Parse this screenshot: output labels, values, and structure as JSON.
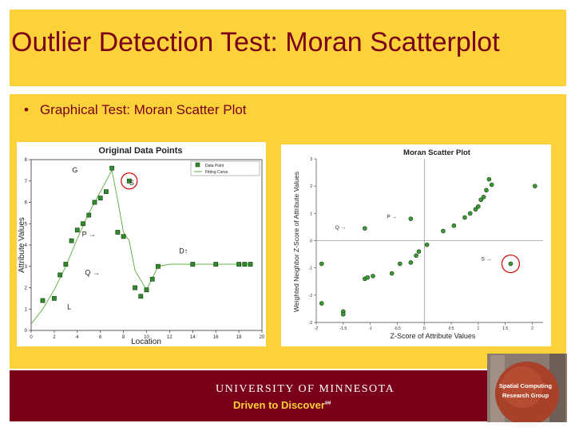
{
  "slide": {
    "title": "Outlier Detection Test: Moran Scatterplot",
    "bullet": "Graphical Test: Moran Scatter Plot",
    "bullet_marker": "•"
  },
  "footer": {
    "university": "UNIVERSITY OF MINNESOTA",
    "tagline": "Driven to Discover",
    "tagline_mark": "SM",
    "group_line1": "Spatial Computing",
    "group_line2": "Research Group",
    "colors": {
      "maroon": "#7a0019",
      "gold": "#fcd23a"
    }
  },
  "chart_data": [
    {
      "type": "line",
      "title": "Original Data Points",
      "xlabel": "Location",
      "ylabel": "Attribute Values",
      "xlim": [
        0,
        20
      ],
      "ylim": [
        0,
        8
      ],
      "xticks": [
        0,
        2,
        4,
        6,
        8,
        10,
        12,
        14,
        16,
        18,
        20
      ],
      "yticks": [
        0,
        1,
        2,
        3,
        4,
        5,
        6,
        7,
        8
      ],
      "legend": {
        "placement": "top-right",
        "entries": [
          "Data Point",
          "Fitting Curve"
        ]
      },
      "series": [
        {
          "name": "Data Point",
          "x": [
            1,
            2,
            2.5,
            3,
            3.5,
            4,
            4.5,
            5,
            5.5,
            6,
            6.5,
            7,
            7.5,
            8,
            8.5,
            9,
            9.5,
            10,
            10.5,
            11,
            14,
            16,
            18,
            18.5,
            19
          ],
          "y": [
            1.4,
            1.5,
            2.6,
            3.1,
            4.2,
            4.7,
            5.0,
            5.4,
            6.0,
            6.2,
            6.5,
            7.6,
            4.6,
            4.4,
            7.0,
            2.0,
            1.6,
            1.9,
            2.4,
            3.0,
            3.1,
            3.1,
            3.1,
            3.1,
            3.1
          ]
        },
        {
          "name": "Fitting Curve",
          "x": [
            0,
            1,
            2,
            3,
            4,
            5,
            6,
            7,
            7.5,
            8,
            8.5,
            9,
            10,
            11,
            12,
            14,
            16,
            18,
            19
          ],
          "y": [
            0.3,
            1.0,
            1.9,
            3.0,
            4.3,
            5.5,
            6.5,
            7.5,
            6.1,
            4.6,
            4.2,
            2.8,
            1.9,
            3.0,
            3.1,
            3.1,
            3.1,
            3.1,
            3.1
          ]
        }
      ],
      "annotations": [
        {
          "text": "G",
          "x": 3.8,
          "y": 7.4
        },
        {
          "text": "S",
          "x": 8.7,
          "y": 6.8
        },
        {
          "text": "P →",
          "x": 5.0,
          "y": 4.4
        },
        {
          "text": "Q →",
          "x": 5.3,
          "y": 2.6
        },
        {
          "text": "D↑",
          "x": 13.2,
          "y": 3.6
        },
        {
          "text": "L",
          "x": 3.3,
          "y": 1.0
        }
      ]
    },
    {
      "type": "scatter",
      "title": "Moran Scatter Plot",
      "xlabel": "Z-Score of Attribute Values",
      "ylabel": "Weighted Neighbor Z-Score of Attribute Values",
      "xlim": [
        -2,
        2.2
      ],
      "ylim": [
        -3,
        3
      ],
      "xticks": [
        -2,
        -1.5,
        -1,
        -0.5,
        0,
        0.5,
        1,
        1.5,
        2
      ],
      "xtick_labels": [
        "-2",
        "-1.5",
        "-1",
        "-0.5",
        "0",
        "0.5",
        "1",
        "1.5",
        "2"
      ],
      "yticks": [
        -3,
        -2,
        -1,
        0,
        1,
        2,
        3
      ],
      "points": {
        "x": [
          -1.9,
          -1.9,
          -1.5,
          -1.5,
          -1.1,
          -1.05,
          -0.95,
          -0.6,
          -0.45,
          -0.25,
          -0.15,
          -0.1,
          0.05,
          0.35,
          0.55,
          0.75,
          0.85,
          0.95,
          1.0,
          1.05,
          1.1,
          1.15,
          1.2,
          1.25,
          2.05,
          1.6,
          -1.1,
          -0.25
        ],
        "y": [
          -0.85,
          -2.3,
          -2.6,
          -2.7,
          -1.4,
          -1.35,
          -1.3,
          -1.2,
          -0.85,
          -0.8,
          -0.55,
          -0.4,
          -0.15,
          0.35,
          0.55,
          0.85,
          1.0,
          1.15,
          1.25,
          1.5,
          1.6,
          1.85,
          2.25,
          2.05,
          2.0,
          -0.85,
          0.45,
          0.8
        ]
      },
      "annotations": [
        {
          "text": "P →",
          "x": -0.6,
          "y": 0.82
        },
        {
          "text": "Q →",
          "x": -1.55,
          "y": 0.42
        },
        {
          "text": "S →",
          "x": 1.15,
          "y": -0.73
        }
      ]
    }
  ]
}
